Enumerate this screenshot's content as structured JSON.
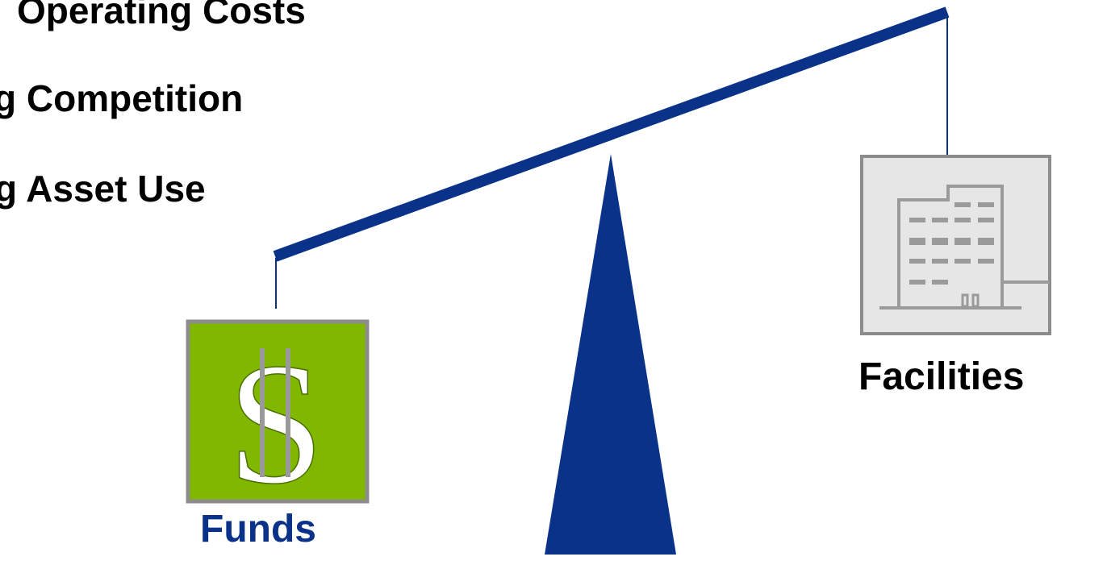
{
  "bullets": [
    {
      "text": "Operating Costs"
    },
    {
      "text": "g Competition"
    },
    {
      "text": "g Asset Use"
    }
  ],
  "funds": {
    "label": "Funds",
    "symbol": "S",
    "icon": "dollar-sign-icon",
    "box_color": "#80b800",
    "label_color": "#0a3288"
  },
  "facilities": {
    "label": "Facilities",
    "icon": "office-building-icon",
    "box_color": "#e6e6e6",
    "label_color": "#000000"
  },
  "balance": {
    "beam_color": "#0a3288",
    "fulcrum_color": "#0a3288",
    "border_gray": "#8c8c8c"
  }
}
